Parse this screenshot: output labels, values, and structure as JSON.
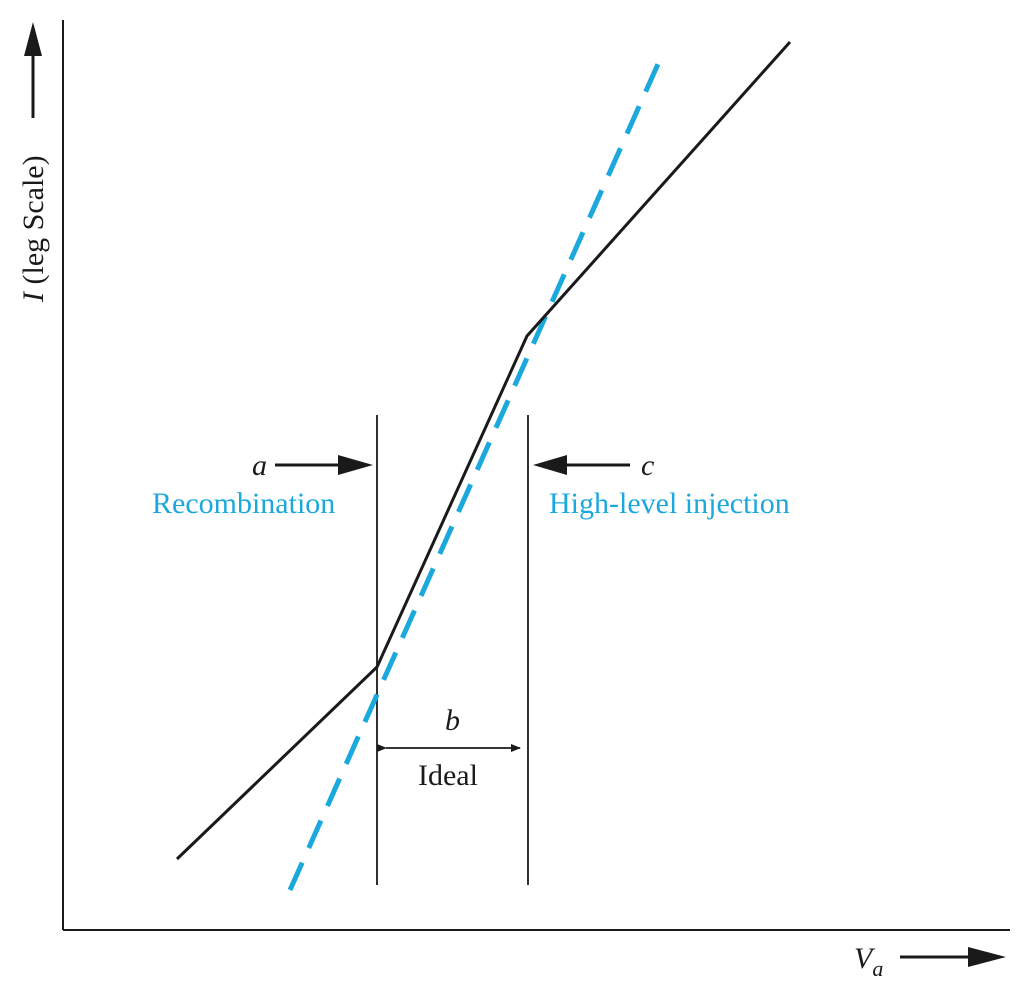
{
  "colors": {
    "ink": "#1a1a1a",
    "accent": "#1ba8dd"
  },
  "axes": {
    "y_label_var": "I",
    "y_label_rest": " (leg Scale)",
    "x_label_var": "V",
    "x_label_sub": "a"
  },
  "regions": {
    "a": {
      "letter": "a",
      "name": "Recombination"
    },
    "b": {
      "letter": "b",
      "name": "Ideal"
    },
    "c": {
      "letter": "c",
      "name": "High-level injection"
    }
  }
}
